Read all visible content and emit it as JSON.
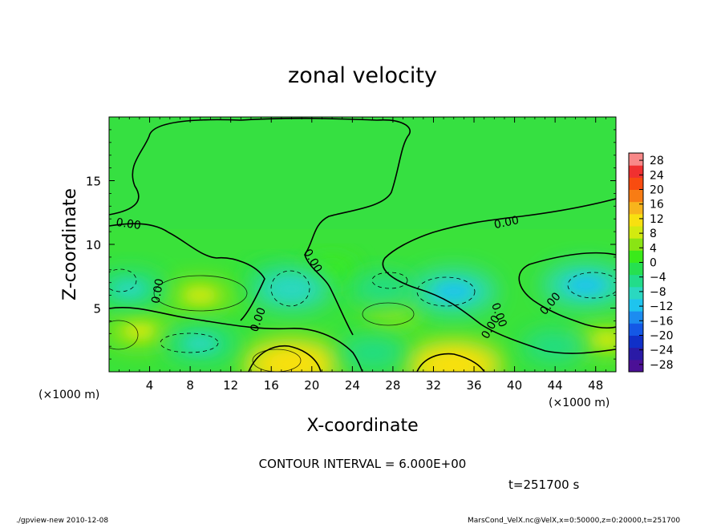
{
  "chart_data": {
    "type": "heatmap",
    "title": "zonal velocity",
    "xlabel": "X-coordinate",
    "ylabel": "Z-coordinate",
    "x_unit": "(×1000 m)",
    "y_unit": "(×1000 m)",
    "xlim": [
      0,
      50
    ],
    "ylim": [
      0,
      20
    ],
    "x_ticks": [
      4,
      8,
      12,
      16,
      20,
      24,
      28,
      32,
      36,
      40,
      44,
      48
    ],
    "y_ticks": [
      5,
      10,
      15
    ],
    "contour_interval_text": "CONTOUR INTERVAL = 6.000E+00",
    "time_text": "t=251700 s",
    "contour_labels": [
      "0.00",
      "0.00",
      "0.00",
      "0.00",
      "0.00",
      "0.00",
      "0.00",
      "0.00"
    ],
    "colorbar": {
      "labels": [
        "28",
        "24",
        "20",
        "16",
        "12",
        "8",
        "4",
        "0",
        "−4",
        "−8",
        "−12",
        "−16",
        "−20",
        "−24",
        "−28"
      ],
      "range": [
        -30,
        30
      ],
      "step": 4,
      "colors": [
        "#4b1096",
        "#2a1aa6",
        "#1030c8",
        "#1458e6",
        "#1c8cf0",
        "#1ec4ee",
        "#2ad8c0",
        "#22dc8a",
        "#26e050",
        "#3aea1a",
        "#8ae414",
        "#d2ea10",
        "#f8e010",
        "#f8b41c",
        "#f87c14",
        "#f84c10",
        "#f03030",
        "#f88888"
      ]
    },
    "features": [
      {
        "x": 9,
        "z": 6.0,
        "value": 6,
        "kind": "positive-core"
      },
      {
        "x": 18,
        "z": 0.6,
        "value": 10,
        "kind": "positive-core"
      },
      {
        "x": 34,
        "z": 0.5,
        "value": 10,
        "kind": "positive-core"
      },
      {
        "x": 3,
        "z": 3.2,
        "value": 6,
        "kind": "positive-core"
      },
      {
        "x": 28,
        "z": 4.5,
        "value": 4,
        "kind": "positive-core"
      },
      {
        "x": 22,
        "z": 8.0,
        "value": 3,
        "kind": "positive-core"
      },
      {
        "x": 49,
        "z": 2.5,
        "value": 6,
        "kind": "positive-core"
      },
      {
        "x": 16,
        "z": 7.5,
        "value": -3,
        "kind": "negative-core"
      },
      {
        "x": 18,
        "z": 6.5,
        "value": -7,
        "kind": "negative-core"
      },
      {
        "x": 34,
        "z": 6.3,
        "value": -8,
        "kind": "negative-core"
      },
      {
        "x": 47,
        "z": 6.8,
        "value": -8,
        "kind": "negative-core"
      },
      {
        "x": 27,
        "z": 6.5,
        "value": -5,
        "kind": "negative-core"
      },
      {
        "x": 2,
        "z": 6.5,
        "value": -6,
        "kind": "negative-core"
      },
      {
        "x": 9,
        "z": 2.2,
        "value": -6,
        "kind": "negative-core"
      },
      {
        "x": 26,
        "z": 1.5,
        "value": -5,
        "kind": "negative-core"
      },
      {
        "x": 44,
        "z": 2.0,
        "value": -5,
        "kind": "negative-core"
      }
    ]
  },
  "footer": {
    "left": "./gpview-new   2010-12-08",
    "right": "MarsCond_VelX.nc@VelX,x=0:50000,z=0:20000,t=251700"
  }
}
